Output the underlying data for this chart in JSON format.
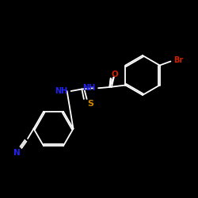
{
  "bg_color": "#000000",
  "bond_color": "#ffffff",
  "colors": {
    "Br": "#cc2200",
    "O": "#cc2200",
    "N": "#2222ee",
    "S": "#cc8800",
    "C": "#ffffff"
  },
  "fig_width": 2.5,
  "fig_height": 2.5,
  "dpi": 100
}
